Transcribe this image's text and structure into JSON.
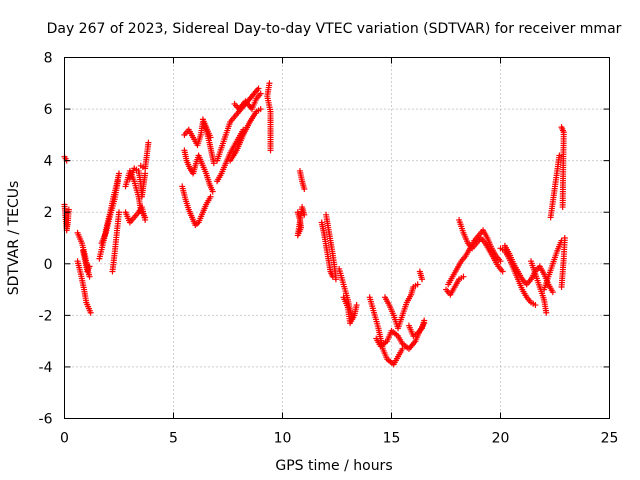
{
  "chart_data": {
    "type": "scatter",
    "title": "Day 267 of 2023, Sidereal Day-to-day VTEC variation (SDTVAR) for receiver mmar",
    "xlabel": "GPS time / hours",
    "ylabel": "SDTVAR / TECUs",
    "xlim": [
      0,
      25
    ],
    "ylim": [
      -6,
      8
    ],
    "xticks": [
      0,
      5,
      10,
      15,
      20,
      25
    ],
    "yticks": [
      -6,
      -4,
      -2,
      0,
      2,
      4,
      6,
      8
    ],
    "xtick_labels": [
      "0",
      "5",
      "10",
      "15",
      "20",
      "25"
    ],
    "ytick_labels": [
      "-6",
      "-4",
      "-2",
      "0",
      "2",
      "4",
      "6",
      "8"
    ],
    "grid": true,
    "marker": "+",
    "color": "#ff0000",
    "series": [
      {
        "name": "SDTVAR",
        "tracks": [
          [
            [
              0.0,
              4.15
            ],
            [
              0.1,
              4.0
            ]
          ],
          [
            [
              0.0,
              2.3
            ],
            [
              0.05,
              1.8
            ],
            [
              0.1,
              1.3
            ],
            [
              0.15,
              1.6
            ],
            [
              0.2,
              2.1
            ]
          ],
          [
            [
              0.6,
              1.2
            ],
            [
              0.8,
              0.8
            ],
            [
              0.95,
              0.3
            ],
            [
              1.05,
              -0.2
            ],
            [
              1.15,
              -0.5
            ]
          ],
          [
            [
              0.6,
              0.1
            ],
            [
              0.75,
              -0.4
            ],
            [
              0.9,
              -1.0
            ],
            [
              1.0,
              -1.5
            ],
            [
              1.2,
              -1.9
            ]
          ],
          [
            [
              0.85,
              0.5
            ],
            [
              0.95,
              0.1
            ],
            [
              1.05,
              -0.3
            ],
            [
              1.15,
              -0.1
            ]
          ],
          [
            [
              1.6,
              0.2
            ],
            [
              1.8,
              0.9
            ],
            [
              1.95,
              1.5
            ],
            [
              2.1,
              2.0
            ],
            [
              2.25,
              2.6
            ],
            [
              2.4,
              3.1
            ],
            [
              2.5,
              3.5
            ]
          ],
          [
            [
              1.7,
              0.8
            ],
            [
              1.9,
              1.2
            ],
            [
              2.1,
              1.9
            ],
            [
              2.3,
              2.5
            ],
            [
              2.45,
              3.2
            ]
          ],
          [
            [
              2.2,
              -0.3
            ],
            [
              2.3,
              0.4
            ],
            [
              2.4,
              1.2
            ],
            [
              2.5,
              2.0
            ]
          ],
          [
            [
              2.8,
              3.0
            ],
            [
              3.0,
              3.6
            ],
            [
              3.2,
              3.2
            ],
            [
              3.4,
              2.6
            ],
            [
              3.5,
              2.1
            ],
            [
              3.7,
              1.8
            ]
          ],
          [
            [
              2.8,
              2.0
            ],
            [
              3.0,
              1.6
            ],
            [
              3.2,
              1.8
            ],
            [
              3.4,
              2.0
            ],
            [
              3.55,
              2.2
            ],
            [
              3.7,
              1.7
            ]
          ],
          [
            [
              3.0,
              3.3
            ],
            [
              3.2,
              3.7
            ],
            [
              3.4,
              3.6
            ],
            [
              3.5,
              3.1
            ],
            [
              3.55,
              2.6
            ],
            [
              3.7,
              3.5
            ]
          ],
          [
            [
              3.5,
              3.8
            ],
            [
              3.7,
              3.7
            ],
            [
              3.85,
              4.7
            ]
          ],
          [
            [
              5.4,
              3.0
            ],
            [
              5.55,
              2.5
            ],
            [
              5.7,
              2.1
            ],
            [
              5.85,
              1.8
            ],
            [
              6.0,
              1.5
            ],
            [
              6.15,
              1.6
            ],
            [
              6.35,
              2.0
            ],
            [
              6.5,
              2.3
            ],
            [
              6.7,
              2.6
            ]
          ],
          [
            [
              5.5,
              4.4
            ],
            [
              5.6,
              4.0
            ],
            [
              5.75,
              3.7
            ],
            [
              5.9,
              3.5
            ],
            [
              6.0,
              3.8
            ],
            [
              6.15,
              4.2
            ],
            [
              6.3,
              3.9
            ],
            [
              6.5,
              3.5
            ],
            [
              6.65,
              3.1
            ],
            [
              6.8,
              2.8
            ]
          ],
          [
            [
              5.5,
              5.0
            ],
            [
              5.7,
              5.2
            ],
            [
              5.9,
              4.9
            ],
            [
              6.1,
              4.6
            ],
            [
              6.25,
              5.0
            ],
            [
              6.35,
              5.5
            ],
            [
              6.5,
              5.2
            ],
            [
              6.65,
              4.7
            ],
            [
              6.75,
              4.3
            ],
            [
              6.85,
              3.9
            ]
          ],
          [
            [
              6.35,
              5.6
            ],
            [
              6.5,
              5.3
            ],
            [
              6.7,
              4.9
            ]
          ],
          [
            [
              7.0,
              3.2
            ],
            [
              7.2,
              3.5
            ],
            [
              7.4,
              3.9
            ],
            [
              7.6,
              4.3
            ],
            [
              7.8,
              4.6
            ],
            [
              8.0,
              4.9
            ],
            [
              8.2,
              5.2
            ]
          ],
          [
            [
              7.0,
              4.0
            ],
            [
              7.2,
              4.5
            ],
            [
              7.4,
              5.0
            ],
            [
              7.6,
              5.5
            ],
            [
              7.8,
              5.7
            ],
            [
              8.0,
              5.9
            ],
            [
              8.3,
              6.2
            ],
            [
              8.6,
              6.5
            ],
            [
              8.9,
              6.8
            ]
          ],
          [
            [
              7.6,
              4.0
            ],
            [
              7.9,
              4.4
            ],
            [
              8.2,
              5.0
            ],
            [
              8.5,
              5.5
            ],
            [
              8.8,
              5.9
            ],
            [
              9.0,
              6.0
            ]
          ],
          [
            [
              7.8,
              6.2
            ],
            [
              8.0,
              6.0
            ],
            [
              8.3,
              6.3
            ],
            [
              8.6,
              6.0
            ],
            [
              8.8,
              6.4
            ],
            [
              9.0,
              6.6
            ]
          ],
          [
            [
              9.4,
              7.0
            ],
            [
              9.3,
              6.5
            ],
            [
              9.45,
              5.9
            ],
            [
              9.45,
              4.4
            ]
          ],
          [
            [
              10.8,
              3.6
            ],
            [
              10.9,
              3.2
            ],
            [
              11.0,
              2.9
            ]
          ],
          [
            [
              10.7,
              2.0
            ],
            [
              10.8,
              1.7
            ],
            [
              10.85,
              1.4
            ],
            [
              10.7,
              1.1
            ],
            [
              10.9,
              2.2
            ],
            [
              11.0,
              1.9
            ]
          ],
          [
            [
              11.8,
              1.6
            ],
            [
              11.9,
              1.2
            ],
            [
              12.0,
              0.7
            ],
            [
              12.1,
              0.2
            ],
            [
              12.2,
              -0.3
            ],
            [
              12.3,
              -0.5
            ]
          ],
          [
            [
              12.0,
              1.9
            ],
            [
              12.1,
              1.4
            ],
            [
              12.2,
              0.9
            ],
            [
              12.3,
              0.4
            ],
            [
              12.4,
              -0.2
            ],
            [
              12.45,
              -0.6
            ]
          ],
          [
            [
              12.6,
              -0.2
            ],
            [
              12.8,
              -0.8
            ],
            [
              13.0,
              -1.4
            ],
            [
              13.1,
              -1.8
            ],
            [
              13.2,
              -2.1
            ]
          ],
          [
            [
              12.8,
              -1.3
            ],
            [
              13.0,
              -1.7
            ],
            [
              13.1,
              -2.3
            ],
            [
              13.3,
              -2.0
            ],
            [
              13.4,
              -1.6
            ]
          ],
          [
            [
              14.0,
              -1.3
            ],
            [
              14.2,
              -1.9
            ],
            [
              14.4,
              -2.5
            ],
            [
              14.5,
              -2.9
            ],
            [
              14.6,
              -3.3
            ],
            [
              14.8,
              -3.7
            ],
            [
              15.1,
              -3.9
            ],
            [
              15.3,
              -3.6
            ],
            [
              15.5,
              -3.3
            ]
          ],
          [
            [
              14.3,
              -2.9
            ],
            [
              14.5,
              -3.2
            ],
            [
              14.8,
              -3.0
            ],
            [
              15.0,
              -2.6
            ],
            [
              15.3,
              -2.8
            ],
            [
              15.5,
              -3.1
            ],
            [
              15.8,
              -3.3
            ],
            [
              16.1,
              -3.0
            ],
            [
              16.3,
              -2.6
            ],
            [
              16.5,
              -2.3
            ]
          ],
          [
            [
              14.7,
              -1.3
            ],
            [
              14.9,
              -1.6
            ],
            [
              15.1,
              -2.0
            ],
            [
              15.3,
              -2.5
            ],
            [
              15.5,
              -2.0
            ],
            [
              15.7,
              -1.5
            ],
            [
              15.9,
              -1.2
            ],
            [
              16.0,
              -0.9
            ],
            [
              16.2,
              -0.8
            ]
          ],
          [
            [
              15.8,
              -2.4
            ],
            [
              16.0,
              -2.8
            ],
            [
              16.2,
              -2.7
            ],
            [
              16.4,
              -2.5
            ],
            [
              16.5,
              -2.2
            ]
          ],
          [
            [
              16.3,
              -0.3
            ],
            [
              16.4,
              -0.6
            ]
          ],
          [
            [
              17.5,
              -1.0
            ],
            [
              17.7,
              -1.2
            ],
            [
              17.9,
              -0.9
            ],
            [
              18.1,
              -0.6
            ],
            [
              18.3,
              -0.5
            ]
          ],
          [
            [
              17.6,
              -0.8
            ],
            [
              17.8,
              -0.5
            ],
            [
              18.0,
              -0.2
            ],
            [
              18.2,
              0.1
            ],
            [
              18.4,
              0.3
            ],
            [
              18.6,
              0.6
            ],
            [
              18.8,
              0.9
            ],
            [
              19.0,
              1.1
            ],
            [
              19.2,
              1.3
            ],
            [
              19.4,
              1.0
            ],
            [
              19.6,
              0.6
            ],
            [
              19.8,
              0.3
            ],
            [
              20.0,
              0.1
            ]
          ],
          [
            [
              18.1,
              1.7
            ],
            [
              18.3,
              1.2
            ],
            [
              18.5,
              0.8
            ],
            [
              18.7,
              0.6
            ],
            [
              18.9,
              0.8
            ],
            [
              19.1,
              1.0
            ],
            [
              19.3,
              0.8
            ],
            [
              19.5,
              0.5
            ],
            [
              19.7,
              0.2
            ],
            [
              19.9,
              -0.1
            ],
            [
              20.1,
              -0.3
            ]
          ],
          [
            [
              20.0,
              0.6
            ],
            [
              20.2,
              0.5
            ],
            [
              20.4,
              0.2
            ],
            [
              20.6,
              -0.2
            ],
            [
              20.8,
              -0.6
            ],
            [
              21.0,
              -1.0
            ],
            [
              21.2,
              -1.3
            ],
            [
              21.4,
              -1.5
            ],
            [
              21.6,
              -1.6
            ]
          ],
          [
            [
              20.2,
              0.7
            ],
            [
              20.4,
              0.4
            ],
            [
              20.6,
              0.0
            ],
            [
              20.8,
              -0.3
            ],
            [
              21.0,
              -0.6
            ],
            [
              21.2,
              -0.8
            ],
            [
              21.4,
              -0.6
            ],
            [
              21.6,
              -0.3
            ],
            [
              21.8,
              -0.1
            ],
            [
              22.0,
              -0.4
            ],
            [
              22.2,
              -0.8
            ],
            [
              22.4,
              -1.1
            ]
          ],
          [
            [
              21.4,
              0.1
            ],
            [
              21.6,
              -0.4
            ],
            [
              21.8,
              -0.9
            ],
            [
              22.0,
              -1.4
            ],
            [
              22.1,
              -1.9
            ]
          ],
          [
            [
              22.0,
              -1.0
            ],
            [
              22.2,
              -0.5
            ],
            [
              22.4,
              0.0
            ],
            [
              22.6,
              0.5
            ],
            [
              22.8,
              0.9
            ]
          ],
          [
            [
              22.3,
              1.8
            ],
            [
              22.4,
              2.4
            ],
            [
              22.5,
              3.0
            ],
            [
              22.6,
              3.6
            ],
            [
              22.7,
              4.2
            ]
          ],
          [
            [
              22.8,
              -0.9
            ],
            [
              22.9,
              0.2
            ],
            [
              22.95,
              1.0
            ]
          ],
          [
            [
              22.8,
              5.3
            ],
            [
              22.9,
              5.1
            ],
            [
              22.85,
              2.2
            ]
          ]
        ]
      }
    ]
  }
}
